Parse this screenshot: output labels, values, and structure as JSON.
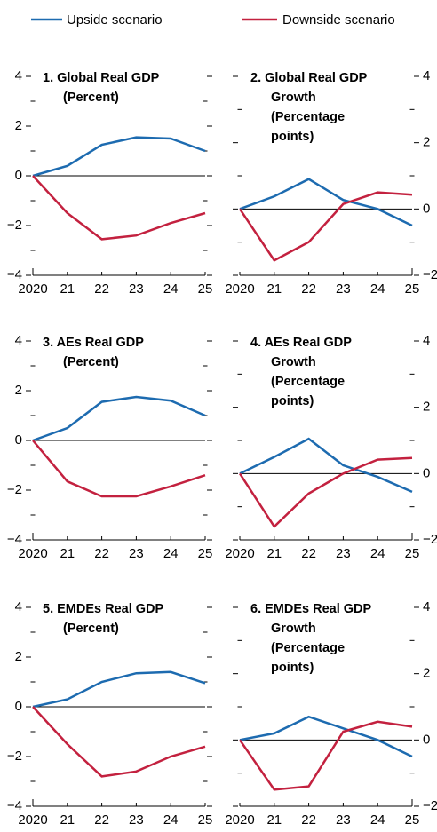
{
  "chart_data": [
    {
      "type": "line",
      "title": [
        "1. Global Real GDP",
        "(Percent)"
      ],
      "categories": [
        "2020",
        "21",
        "22",
        "23",
        "24",
        "25"
      ],
      "series": [
        {
          "name": "Upside scenario",
          "color": "#1d6bb0",
          "values": [
            0,
            0.4,
            1.25,
            1.55,
            1.5,
            1.0
          ]
        },
        {
          "name": "Downside scenario",
          "color": "#c3213f",
          "values": [
            0,
            -1.5,
            -2.55,
            -2.4,
            -1.9,
            -1.5
          ]
        }
      ],
      "ylim": [
        -4,
        4
      ],
      "yticks": [
        {
          "value": -4,
          "label": "−4"
        },
        {
          "value": -2,
          "label": "−2"
        },
        0,
        2,
        4
      ],
      "yminorticks": [
        -3,
        -1,
        1,
        3
      ],
      "yaxis": "left"
    },
    {
      "type": "line",
      "title": [
        "2. Global Real GDP",
        "Growth",
        "(Percentage",
        "points)"
      ],
      "categories": [
        "2020",
        "21",
        "22",
        "23",
        "24",
        "25"
      ],
      "series": [
        {
          "name": "Upside scenario",
          "color": "#1d6bb0",
          "values": [
            0,
            0.38,
            0.9,
            0.27,
            0,
            -0.5
          ]
        },
        {
          "name": "Downside scenario",
          "color": "#c3213f",
          "values": [
            0,
            -1.55,
            -1.0,
            0.15,
            0.5,
            0.43
          ]
        }
      ],
      "ylim": [
        -2,
        4
      ],
      "yticks": [
        {
          "value": -2,
          "label": "−2"
        },
        0,
        2,
        4
      ],
      "yminorticks": [
        -1,
        1,
        3
      ],
      "yaxis": "right"
    },
    {
      "type": "line",
      "title": [
        "3. AEs Real GDP",
        "(Percent)"
      ],
      "categories": [
        "2020",
        "21",
        "22",
        "23",
        "24",
        "25"
      ],
      "series": [
        {
          "name": "Upside scenario",
          "color": "#1d6bb0",
          "values": [
            0,
            0.5,
            1.55,
            1.75,
            1.6,
            1.0
          ]
        },
        {
          "name": "Downside scenario",
          "color": "#c3213f",
          "values": [
            0,
            -1.65,
            -2.25,
            -2.25,
            -1.85,
            -1.4
          ]
        }
      ],
      "ylim": [
        -4,
        4
      ],
      "yticks": [
        {
          "value": -4,
          "label": "−4"
        },
        {
          "value": -2,
          "label": "−2"
        },
        0,
        2,
        4
      ],
      "yminorticks": [
        -3,
        -1,
        1,
        3
      ],
      "yaxis": "left"
    },
    {
      "type": "line",
      "title": [
        "4. AEs Real GDP",
        "Growth",
        "(Percentage",
        "points)"
      ],
      "categories": [
        "2020",
        "21",
        "22",
        "23",
        "24",
        "25"
      ],
      "series": [
        {
          "name": "Upside scenario",
          "color": "#1d6bb0",
          "values": [
            0,
            0.5,
            1.05,
            0.25,
            -0.1,
            -0.55
          ]
        },
        {
          "name": "Downside scenario",
          "color": "#c3213f",
          "values": [
            0,
            -1.6,
            -0.6,
            0,
            0.42,
            0.47
          ]
        }
      ],
      "ylim": [
        -2,
        4
      ],
      "yticks": [
        {
          "value": -2,
          "label": "−2"
        },
        0,
        2,
        4
      ],
      "yminorticks": [
        -1,
        1,
        3
      ],
      "yaxis": "right"
    },
    {
      "type": "line",
      "title": [
        "5. EMDEs Real GDP",
        "(Percent)"
      ],
      "categories": [
        "2020",
        "21",
        "22",
        "23",
        "24",
        "25"
      ],
      "series": [
        {
          "name": "Upside scenario",
          "color": "#1d6bb0",
          "values": [
            0,
            0.3,
            1.0,
            1.35,
            1.4,
            0.95
          ]
        },
        {
          "name": "Downside scenario",
          "color": "#c3213f",
          "values": [
            0,
            -1.5,
            -2.8,
            -2.6,
            -2.0,
            -1.6
          ]
        }
      ],
      "ylim": [
        -4,
        4
      ],
      "yticks": [
        {
          "value": -4,
          "label": "−4"
        },
        {
          "value": -2,
          "label": "−2"
        },
        0,
        2,
        4
      ],
      "yminorticks": [
        -3,
        -1,
        1,
        3
      ],
      "yaxis": "left"
    },
    {
      "type": "line",
      "title": [
        "6. EMDEs Real GDP",
        "Growth",
        "(Percentage",
        "points)"
      ],
      "categories": [
        "2020",
        "21",
        "22",
        "23",
        "24",
        "25"
      ],
      "series": [
        {
          "name": "Upside scenario",
          "color": "#1d6bb0",
          "values": [
            0,
            0.2,
            0.7,
            0.35,
            0,
            -0.5
          ]
        },
        {
          "name": "Downside scenario",
          "color": "#c3213f",
          "values": [
            0,
            -1.5,
            -1.4,
            0.25,
            0.55,
            0.4
          ]
        }
      ],
      "ylim": [
        -2,
        4
      ],
      "yticks": [
        {
          "value": -2,
          "label": "−2"
        },
        0,
        2,
        4
      ],
      "yminorticks": [
        -1,
        1,
        3
      ],
      "yaxis": "right"
    }
  ]
}
